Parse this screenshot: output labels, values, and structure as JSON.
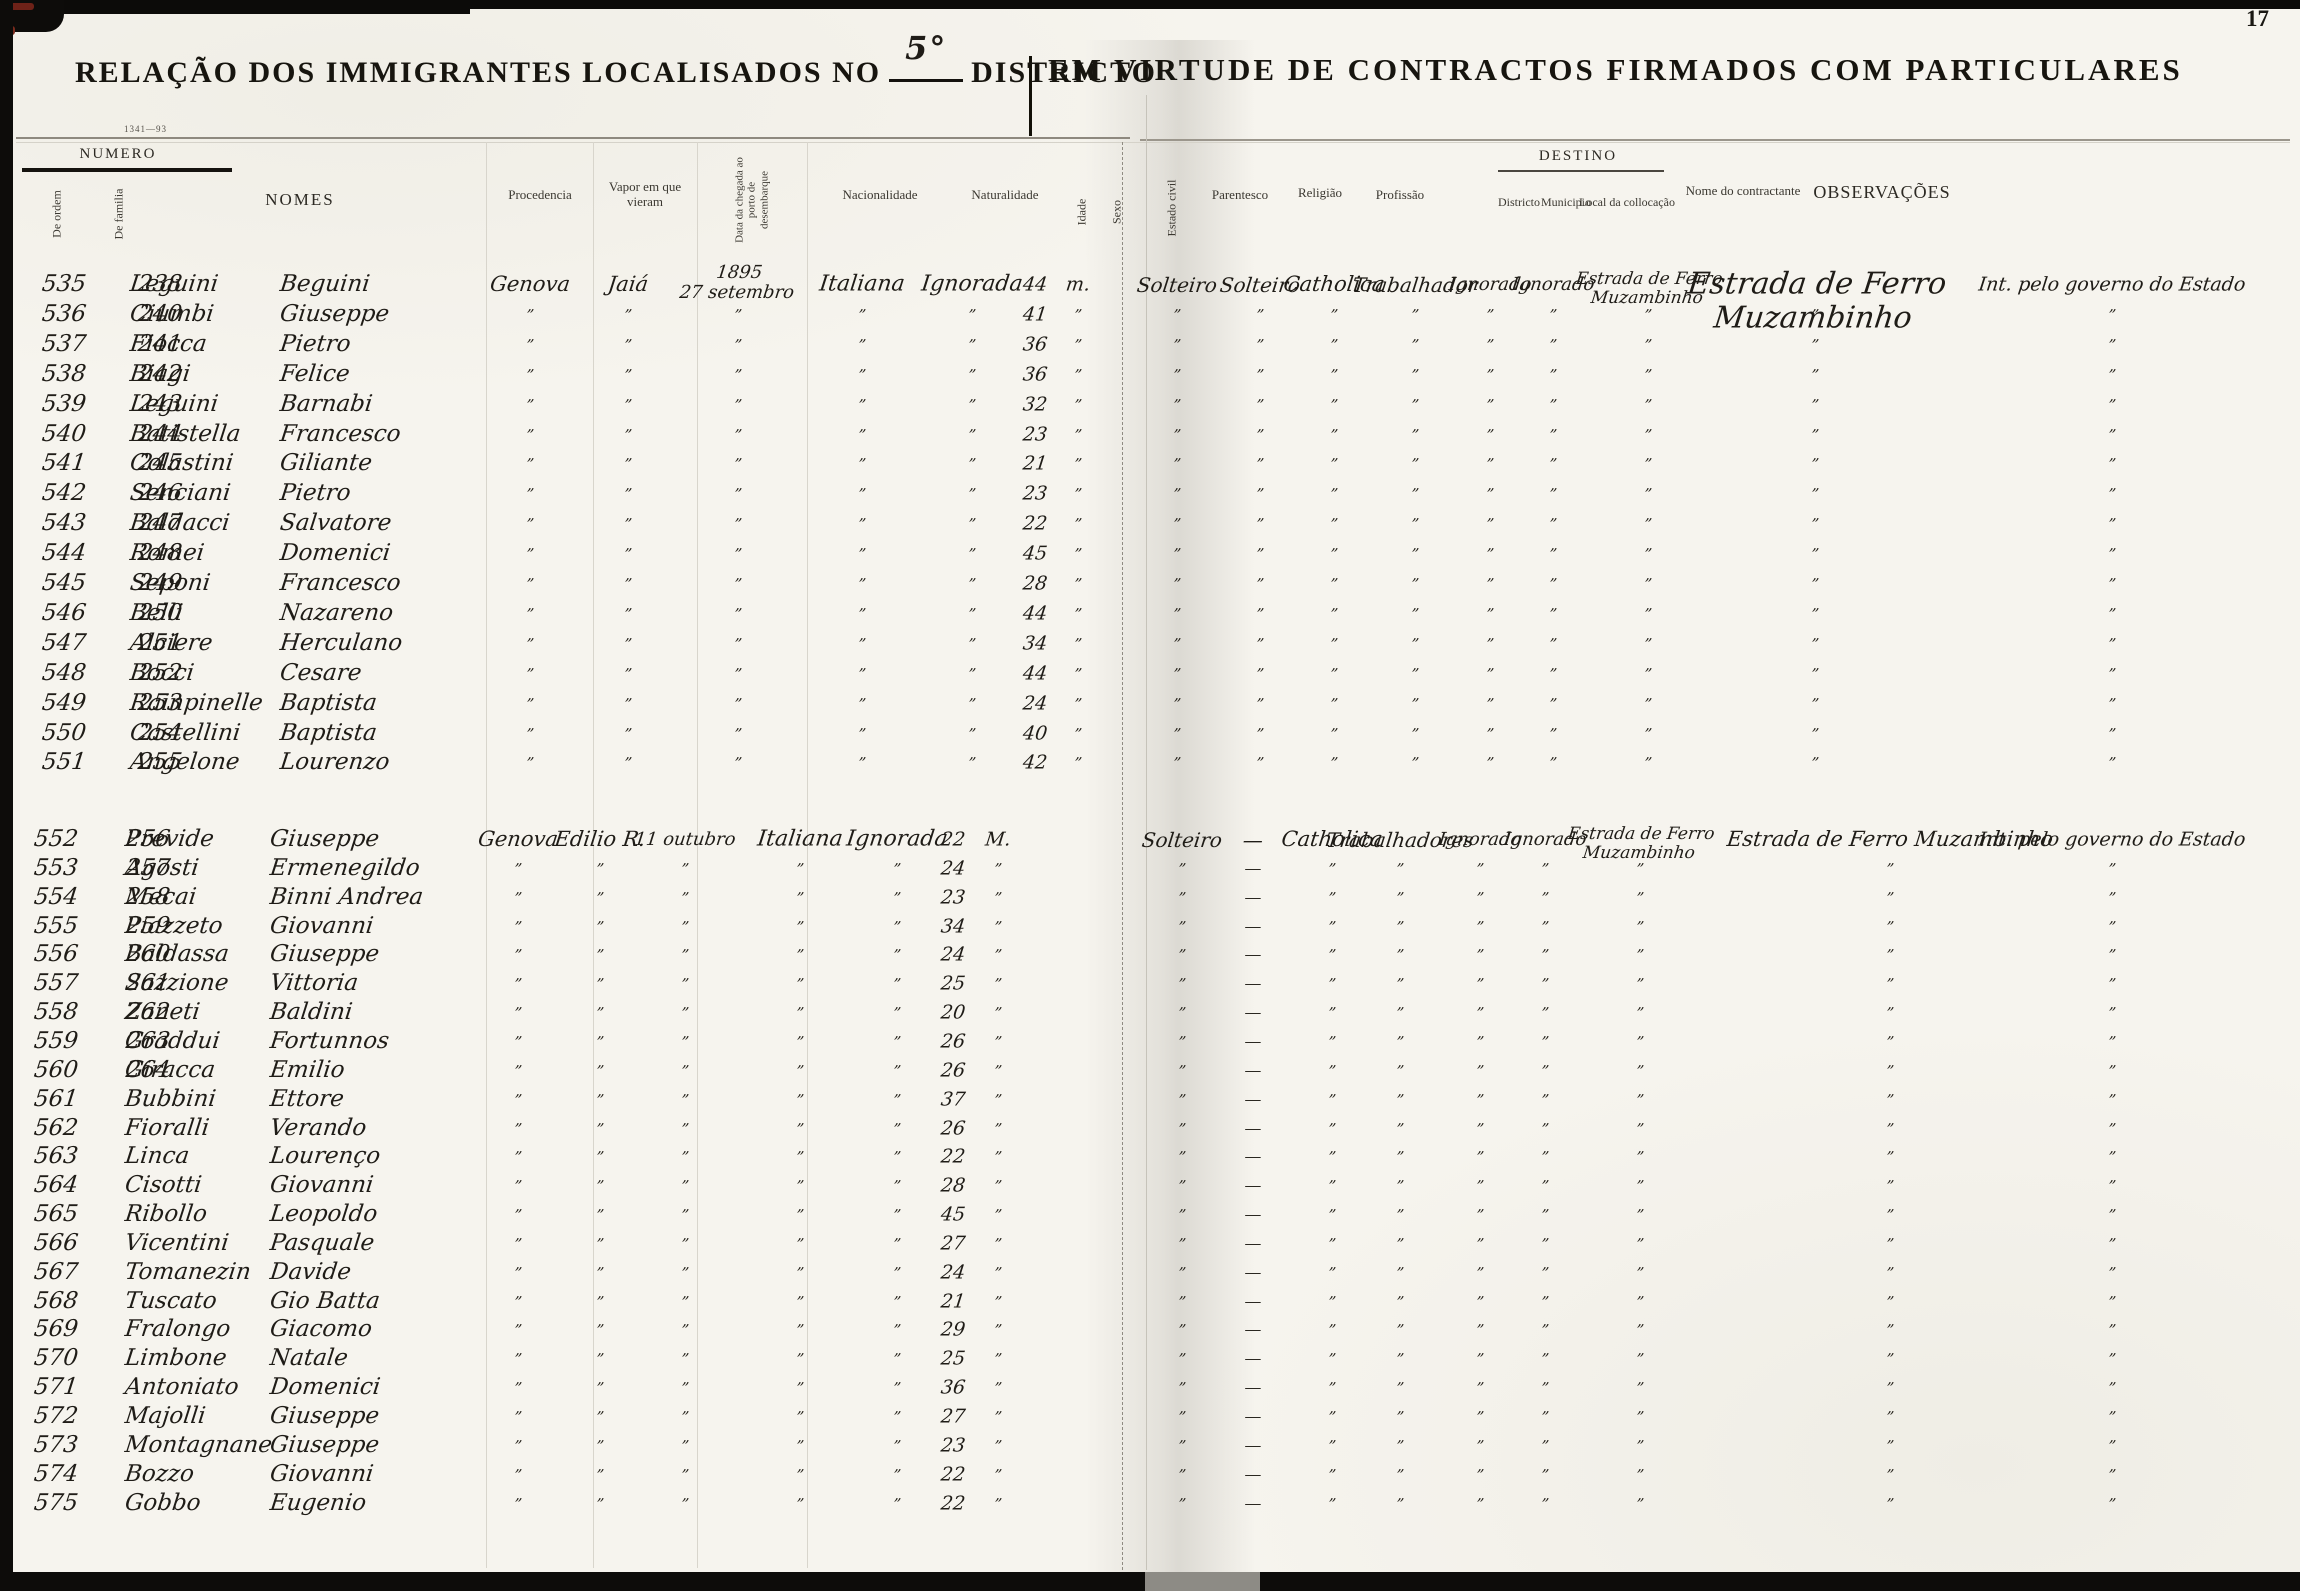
{
  "scan": {
    "page_number": "17",
    "form_code": "1341—93"
  },
  "title": {
    "left_prefix": "RELAÇÃO DOS IMMIGRANTES LOCALISADOS NO",
    "district_number": "5°",
    "left_suffix": "DISTRICTO",
    "right": "EM VIRTUDE DE CONTRACTOS FIRMADOS COM PARTICULARES"
  },
  "headers": {
    "numero": "NUMERO",
    "de_ordem": "De ordem",
    "de_familia": "De familia",
    "nomes": "NOMES",
    "procedencia": "Procedencia",
    "vapor": "Vapor em que vieram",
    "data_chegada": "Data da chegada ao porto de desembarque",
    "nacionalidade": "Nacionalidade",
    "naturalidade": "Naturalidade",
    "idade": "Idade",
    "sexo": "Sexo",
    "estado_civil": "Estado civil",
    "parentesco": "Parentesco",
    "religiao": "Religião",
    "profissao": "Profissão",
    "destino": "DESTINO",
    "districto": "Districto",
    "municipio": "Municipio",
    "local": "Local da collocação",
    "contractante": "Nome do contractante",
    "observacoes": "OBSERVAÇÕES"
  },
  "ditto_mark": "”",
  "dash_mark": "—",
  "groups": [
    {
      "name": "group-1",
      "common": {
        "procedencia": "Genova",
        "vapor": "Jaiá",
        "data_chegada": [
          "1895",
          "27 setembro"
        ],
        "nacionalidade": "Italiana",
        "naturalidade": "Ignorada",
        "sexo": "m.",
        "estado_civil": "Solteiro",
        "parentesco": "Solteiro",
        "religiao": "Catholica",
        "profissao": "Trabalhador",
        "districto": "Ignorado",
        "municipio": "Ignorado",
        "local": [
          "Estrada de Ferro",
          "Muzambinho"
        ],
        "contractante": [
          "Estrada de Ferro",
          "Muzambinho"
        ],
        "observacoes": "Int. pelo governo do Estado"
      },
      "rows": [
        {
          "ordem": "535",
          "familia": "238",
          "surname": "Leguini",
          "given": "Beguini",
          "idade": "44"
        },
        {
          "ordem": "536",
          "familia": "240",
          "surname": "Ciumbi",
          "given": "Giuseppe",
          "idade": "41"
        },
        {
          "ordem": "537",
          "familia": "241",
          "surname": "Fiocca",
          "given": "Pietro",
          "idade": "36"
        },
        {
          "ordem": "538",
          "familia": "242",
          "surname": "Biagi",
          "given": "Felice",
          "idade": "36"
        },
        {
          "ordem": "539",
          "familia": "243",
          "surname": "Leguini",
          "given": "Barnabi",
          "idade": "32"
        },
        {
          "ordem": "540",
          "familia": "244",
          "surname": "Batistella",
          "given": "Francesco",
          "idade": "23"
        },
        {
          "ordem": "541",
          "familia": "245",
          "surname": "Colastini",
          "given": "Giliante",
          "idade": "21"
        },
        {
          "ordem": "542",
          "familia": "246",
          "surname": "Senciani",
          "given": "Pietro",
          "idade": "23"
        },
        {
          "ordem": "543",
          "familia": "247",
          "surname": "Baldacci",
          "given": "Salvatore",
          "idade": "22"
        },
        {
          "ordem": "544",
          "familia": "248",
          "surname": "Romei",
          "given": "Domenici",
          "idade": "45"
        },
        {
          "ordem": "545",
          "familia": "249",
          "surname": "Seponi",
          "given": "Francesco",
          "idade": "28"
        },
        {
          "ordem": "546",
          "familia": "250",
          "surname": "Belli",
          "given": "Nazareno",
          "idade": "44"
        },
        {
          "ordem": "547",
          "familia": "251",
          "surname": "Alciere",
          "given": "Herculano",
          "idade": "34"
        },
        {
          "ordem": "548",
          "familia": "252",
          "surname": "Bocci",
          "given": "Cesare",
          "idade": "44"
        },
        {
          "ordem": "549",
          "familia": "253",
          "surname": "Rainpinelle",
          "given": "Baptista",
          "idade": "24"
        },
        {
          "ordem": "550",
          "familia": "254",
          "surname": "Castellini",
          "given": "Baptista",
          "idade": "40"
        },
        {
          "ordem": "551",
          "familia": "255",
          "surname": "Angelone",
          "given": "Lourenzo",
          "idade": "42"
        }
      ]
    },
    {
      "name": "group-2",
      "common": {
        "procedencia": "Genova",
        "vapor": "Edilio R.",
        "data_chegada": [
          "11 outubro"
        ],
        "nacionalidade": "Italiana",
        "naturalidade": "Ignorada",
        "sexo": "M.",
        "estado_civil": "Solteiro",
        "parentesco": "—",
        "religiao": "Catholica",
        "profissao": "Trabalhadores",
        "districto": "Ignorado",
        "municipio": "Ignorado",
        "local": [
          "Estrada de Ferro",
          "Muzambinho"
        ],
        "contractante": [
          "Estrada de Ferro Muzambinho"
        ],
        "observacoes": "Int. pelo governo do Estado"
      },
      "rows": [
        {
          "ordem": "552",
          "familia": "256",
          "surname": "Previde",
          "given": "Giuseppe",
          "idade": "22"
        },
        {
          "ordem": "553",
          "familia": "257",
          "surname": "Agosti",
          "given": "Ermenegildo",
          "idade": "24"
        },
        {
          "ordem": "554",
          "familia": "258",
          "surname": "Mecai",
          "given": "Binni Andrea",
          "idade": "23"
        },
        {
          "ordem": "555",
          "familia": "259",
          "surname": "Piazzeto",
          "given": "Giovanni",
          "idade": "34"
        },
        {
          "ordem": "556",
          "familia": "260",
          "surname": "Baldassa",
          "given": "Giuseppe",
          "idade": "24"
        },
        {
          "ordem": "557",
          "familia": "261",
          "surname": "Sazzione",
          "given": "Vittoria",
          "idade": "25"
        },
        {
          "ordem": "558",
          "familia": "262",
          "surname": "Zaneti",
          "given": "Baldini",
          "idade": "20"
        },
        {
          "ordem": "559",
          "familia": "263",
          "surname": "Graddui",
          "given": "Fortunnos",
          "idade": "26"
        },
        {
          "ordem": "560",
          "familia": "264",
          "surname": "Giracca",
          "given": "Emilio",
          "idade": "26"
        },
        {
          "ordem": "561",
          "familia": "",
          "surname": "Bubbini",
          "given": "Ettore",
          "idade": "37"
        },
        {
          "ordem": "562",
          "familia": "",
          "surname": "Fioralli",
          "given": "Verando",
          "idade": "26"
        },
        {
          "ordem": "563",
          "familia": "",
          "surname": "Linca",
          "given": "Lourenço",
          "idade": "22"
        },
        {
          "ordem": "564",
          "familia": "",
          "surname": "Cisotti",
          "given": "Giovanni",
          "idade": "28"
        },
        {
          "ordem": "565",
          "familia": "",
          "surname": "Ribollo",
          "given": "Leopoldo",
          "idade": "45"
        },
        {
          "ordem": "566",
          "familia": "",
          "surname": "Vicentini",
          "given": "Pasquale",
          "idade": "27"
        },
        {
          "ordem": "567",
          "familia": "",
          "surname": "Tomanezin",
          "given": "Davide",
          "idade": "24"
        },
        {
          "ordem": "568",
          "familia": "",
          "surname": "Tuscato",
          "given": "Gio Batta",
          "idade": "21"
        },
        {
          "ordem": "569",
          "familia": "",
          "surname": "Fralongo",
          "given": "Giacomo",
          "idade": "29"
        },
        {
          "ordem": "570",
          "familia": "",
          "surname": "Limbone",
          "given": "Natale",
          "idade": "25"
        },
        {
          "ordem": "571",
          "familia": "",
          "surname": "Antoniato",
          "given": "Domenici",
          "idade": "36"
        },
        {
          "ordem": "572",
          "familia": "",
          "surname": "Majolli",
          "given": "Giuseppe",
          "idade": "27"
        },
        {
          "ordem": "573",
          "familia": "",
          "surname": "Montagnane",
          "given": "Giuseppe",
          "idade": "23"
        },
        {
          "ordem": "574",
          "familia": "",
          "surname": "Bozzo",
          "given": "Giovanni",
          "idade": "22"
        },
        {
          "ordem": "575",
          "familia": "",
          "surname": "Gobbo",
          "given": "Eugenio",
          "idade": "22"
        }
      ]
    }
  ]
}
